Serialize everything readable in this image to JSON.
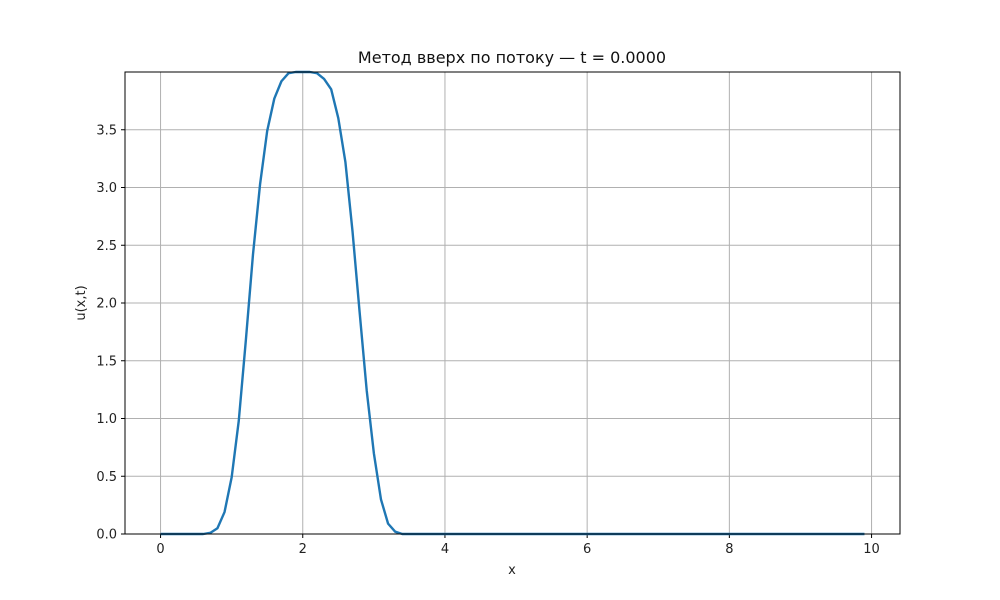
{
  "chart_data": {
    "type": "line",
    "title": "Метод вверх по потоку — t = 0.0000",
    "xlabel": "x",
    "ylabel": "u(x,t)",
    "xlim": [
      -0.5,
      10.4
    ],
    "ylim": [
      0,
      4.0
    ],
    "grid": true,
    "line_color": "#1f77b4",
    "grid_color": "#b0b0b0",
    "xticks": [
      0,
      2,
      4,
      6,
      8,
      10
    ],
    "xtick_labels": [
      "0",
      "2",
      "4",
      "6",
      "8",
      "10"
    ],
    "yticks": [
      0.0,
      0.5,
      1.0,
      1.5,
      2.0,
      2.5,
      3.0,
      3.5
    ],
    "ytick_labels": [
      "0.0",
      "0.5",
      "1.0",
      "1.5",
      "2.0",
      "2.5",
      "3.0",
      "3.5"
    ],
    "series": [
      {
        "x": [
          0.0,
          0.1,
          0.2,
          0.3,
          0.4,
          0.5,
          0.6,
          0.7,
          0.8,
          0.9,
          1.0,
          1.1,
          1.2,
          1.3,
          1.4,
          1.5,
          1.6,
          1.7,
          1.8,
          1.9,
          2.0,
          2.1,
          2.2,
          2.3,
          2.4,
          2.5,
          2.6,
          2.7,
          2.8,
          2.9,
          3.0,
          3.1,
          3.2,
          3.3,
          3.4,
          3.5,
          3.6,
          3.7,
          3.8,
          3.9,
          4.0,
          4.5,
          5.0,
          5.5,
          6.0,
          6.5,
          7.0,
          7.5,
          8.0,
          8.5,
          9.0,
          9.5,
          9.9
        ],
        "y": [
          0,
          0,
          0,
          0,
          0,
          0,
          0,
          0.01,
          0.05,
          0.19,
          0.49,
          0.98,
          1.68,
          2.42,
          3.03,
          3.49,
          3.77,
          3.92,
          3.99,
          4.0,
          4.0,
          4.0,
          3.99,
          3.94,
          3.85,
          3.6,
          3.22,
          2.62,
          1.92,
          1.24,
          0.7,
          0.3,
          0.09,
          0.02,
          0,
          0,
          0,
          0,
          0,
          0,
          0,
          0,
          0,
          0,
          0,
          0,
          0,
          0,
          0,
          0,
          0,
          0,
          0
        ]
      }
    ]
  }
}
